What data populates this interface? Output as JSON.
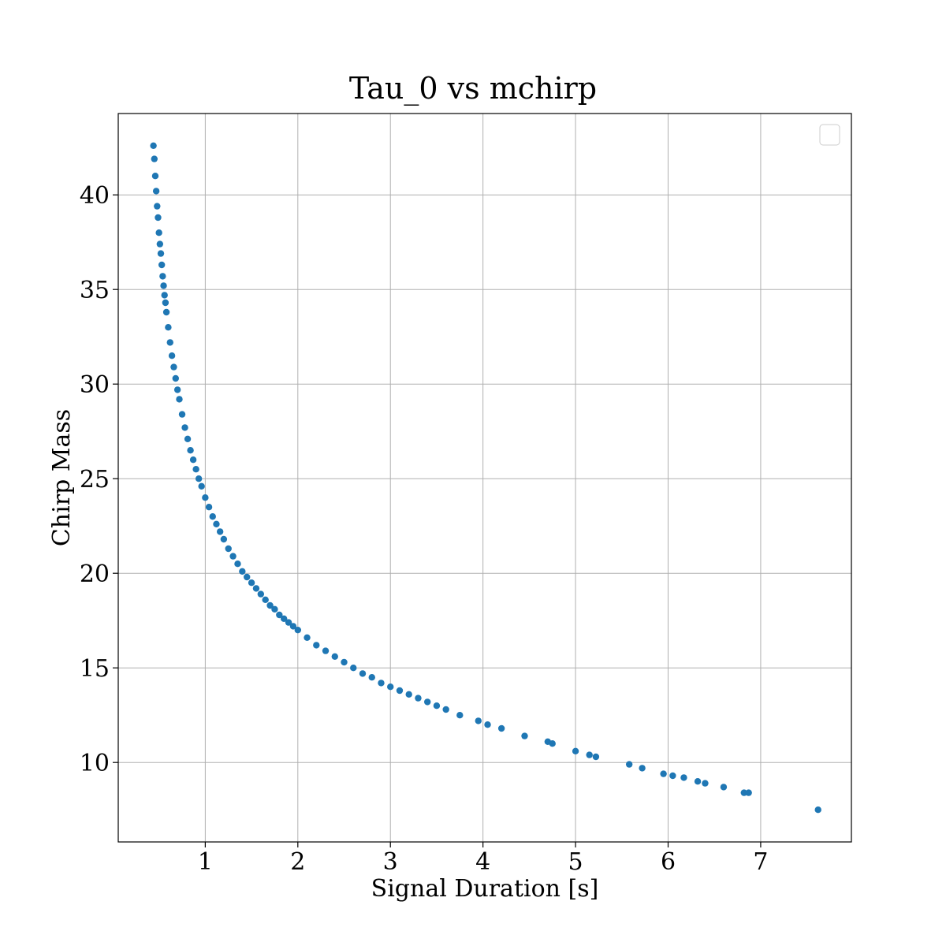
{
  "chart_data": {
    "type": "scatter",
    "title": "Tau_0 vs mchirp",
    "xlabel": "Signal Duration [s]",
    "ylabel": "Chirp Mass",
    "xlim": [
      0.06,
      7.98
    ],
    "ylim": [
      5.8,
      44.3
    ],
    "xticks": [
      1,
      2,
      3,
      4,
      5,
      6,
      7
    ],
    "yticks": [
      10,
      15,
      20,
      25,
      30,
      35,
      40
    ],
    "grid": true,
    "legend": "top-right",
    "legend_entries": [],
    "series": [
      {
        "color": "#1f77b4",
        "x": [
          0.44,
          0.45,
          0.46,
          0.47,
          0.48,
          0.49,
          0.5,
          0.51,
          0.52,
          0.53,
          0.54,
          0.55,
          0.56,
          0.57,
          0.58,
          0.6,
          0.62,
          0.64,
          0.66,
          0.68,
          0.7,
          0.72,
          0.75,
          0.78,
          0.81,
          0.84,
          0.87,
          0.9,
          0.93,
          0.96,
          1.0,
          1.04,
          1.08,
          1.12,
          1.16,
          1.2,
          1.25,
          1.3,
          1.35,
          1.4,
          1.45,
          1.5,
          1.55,
          1.6,
          1.65,
          1.7,
          1.75,
          1.8,
          1.85,
          1.9,
          1.95,
          2.0,
          2.1,
          2.2,
          2.3,
          2.4,
          2.5,
          2.6,
          2.7,
          2.8,
          2.9,
          3.0,
          3.1,
          3.2,
          3.3,
          3.4,
          3.5,
          3.6,
          3.75,
          3.95,
          4.05,
          4.2,
          4.45,
          4.7,
          4.75,
          5.0,
          5.15,
          5.22,
          5.58,
          5.72,
          5.95,
          6.05,
          6.17,
          6.32,
          6.4,
          6.6,
          6.82,
          6.87,
          7.62
        ],
        "y": [
          42.6,
          41.9,
          41.0,
          40.2,
          39.4,
          38.8,
          38.0,
          37.4,
          36.9,
          36.3,
          35.7,
          35.2,
          34.7,
          34.3,
          33.8,
          33.0,
          32.2,
          31.5,
          30.9,
          30.3,
          29.7,
          29.2,
          28.4,
          27.7,
          27.1,
          26.5,
          26.0,
          25.5,
          25.0,
          24.6,
          24.0,
          23.5,
          23.0,
          22.6,
          22.2,
          21.8,
          21.3,
          20.9,
          20.5,
          20.1,
          19.8,
          19.5,
          19.2,
          18.9,
          18.6,
          18.3,
          18.1,
          17.8,
          17.6,
          17.4,
          17.2,
          17.0,
          16.6,
          16.2,
          15.9,
          15.6,
          15.3,
          15.0,
          14.7,
          14.5,
          14.2,
          14.0,
          13.8,
          13.6,
          13.4,
          13.2,
          13.0,
          12.8,
          12.5,
          12.2,
          12.0,
          11.8,
          11.4,
          11.1,
          11.0,
          10.6,
          10.4,
          10.3,
          9.9,
          9.7,
          9.4,
          9.3,
          9.2,
          9.0,
          8.9,
          8.7,
          8.4,
          8.4,
          7.5
        ]
      }
    ]
  }
}
